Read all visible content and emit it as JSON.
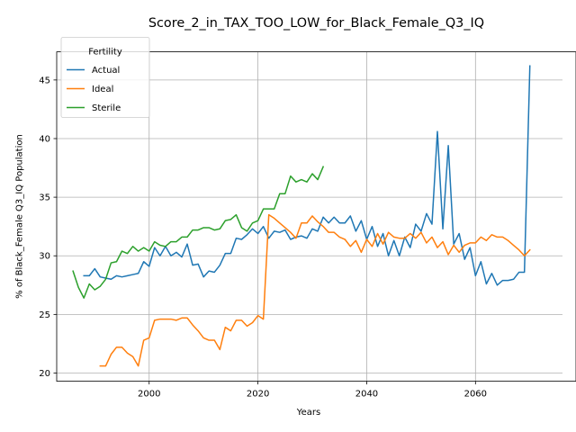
{
  "chart_data": {
    "type": "line",
    "title": "Score_2_in_TAX_TOO_LOW_for_Black_Female_Q3_IQ",
    "xlabel": "Years",
    "ylabel": "% of Black_Female Q3_IQ Population",
    "xlim": [
      1983,
      2076
    ],
    "ylim": [
      19.3,
      47.4
    ],
    "xticks": [
      2000,
      2020,
      2040,
      2060
    ],
    "yticks": [
      20,
      25,
      30,
      35,
      40,
      45
    ],
    "grid": true,
    "legend": {
      "title": "Fertility",
      "position": "top-left"
    },
    "series": [
      {
        "name": "Actual",
        "color": "#1f77b4",
        "points": [
          [
            1988,
            28.3
          ],
          [
            1989,
            28.3
          ],
          [
            1990,
            28.9
          ],
          [
            1991,
            28.2
          ],
          [
            1992,
            28.1
          ],
          [
            1993,
            28.0
          ],
          [
            1994,
            28.3
          ],
          [
            1995,
            28.2
          ],
          [
            1996,
            28.3
          ],
          [
            1997,
            28.4
          ],
          [
            1998,
            28.5
          ],
          [
            1999,
            29.5
          ],
          [
            2000,
            29.1
          ],
          [
            2001,
            30.7
          ],
          [
            2002,
            30.0
          ],
          [
            2003,
            30.8
          ],
          [
            2004,
            30.0
          ],
          [
            2005,
            30.3
          ],
          [
            2006,
            29.9
          ],
          [
            2007,
            31.0
          ],
          [
            2008,
            29.2
          ],
          [
            2009,
            29.3
          ],
          [
            2010,
            28.2
          ],
          [
            2011,
            28.7
          ],
          [
            2012,
            28.6
          ],
          [
            2013,
            29.2
          ],
          [
            2014,
            30.2
          ],
          [
            2015,
            30.2
          ],
          [
            2016,
            31.5
          ],
          [
            2017,
            31.4
          ],
          [
            2018,
            31.8
          ],
          [
            2019,
            32.3
          ],
          [
            2020,
            31.9
          ],
          [
            2021,
            32.5
          ],
          [
            2022,
            31.5
          ],
          [
            2023,
            32.1
          ],
          [
            2024,
            32.0
          ],
          [
            2025,
            32.2
          ],
          [
            2026,
            31.4
          ],
          [
            2027,
            31.6
          ],
          [
            2028,
            31.7
          ],
          [
            2029,
            31.5
          ],
          [
            2030,
            32.3
          ],
          [
            2031,
            32.1
          ],
          [
            2032,
            33.3
          ],
          [
            2033,
            32.8
          ],
          [
            2034,
            33.3
          ],
          [
            2035,
            32.8
          ],
          [
            2036,
            32.8
          ],
          [
            2037,
            33.4
          ],
          [
            2038,
            32.1
          ],
          [
            2039,
            33.0
          ],
          [
            2040,
            31.4
          ],
          [
            2041,
            32.5
          ],
          [
            2042,
            30.8
          ],
          [
            2043,
            31.9
          ],
          [
            2044,
            30.0
          ],
          [
            2045,
            31.3
          ],
          [
            2046,
            30.0
          ],
          [
            2047,
            31.6
          ],
          [
            2048,
            30.7
          ],
          [
            2049,
            32.7
          ],
          [
            2050,
            32.1
          ],
          [
            2051,
            33.6
          ],
          [
            2052,
            32.7
          ],
          [
            2053,
            40.6
          ],
          [
            2054,
            32.3
          ],
          [
            2055,
            39.4
          ],
          [
            2056,
            31.0
          ],
          [
            2057,
            31.9
          ],
          [
            2058,
            29.7
          ],
          [
            2059,
            30.7
          ],
          [
            2060,
            28.3
          ],
          [
            2061,
            29.5
          ],
          [
            2062,
            27.6
          ],
          [
            2063,
            28.5
          ],
          [
            2064,
            27.5
          ],
          [
            2065,
            27.9
          ],
          [
            2066,
            27.9
          ],
          [
            2067,
            28.0
          ],
          [
            2068,
            28.6
          ],
          [
            2069,
            28.6
          ],
          [
            2070,
            46.2
          ]
        ]
      },
      {
        "name": "Ideal",
        "color": "#ff7f0e",
        "points": [
          [
            1991,
            20.6
          ],
          [
            1992,
            20.6
          ],
          [
            1993,
            21.6
          ],
          [
            1994,
            22.2
          ],
          [
            1995,
            22.2
          ],
          [
            1996,
            21.7
          ],
          [
            1997,
            21.4
          ],
          [
            1998,
            20.6
          ],
          [
            1999,
            22.8
          ],
          [
            2000,
            23.0
          ],
          [
            2001,
            24.5
          ],
          [
            2002,
            24.6
          ],
          [
            2003,
            24.6
          ],
          [
            2004,
            24.6
          ],
          [
            2005,
            24.5
          ],
          [
            2006,
            24.7
          ],
          [
            2007,
            24.7
          ],
          [
            2008,
            24.1
          ],
          [
            2009,
            23.6
          ],
          [
            2010,
            23.0
          ],
          [
            2011,
            22.8
          ],
          [
            2012,
            22.8
          ],
          [
            2013,
            22.0
          ],
          [
            2014,
            23.9
          ],
          [
            2015,
            23.6
          ],
          [
            2016,
            24.5
          ],
          [
            2017,
            24.5
          ],
          [
            2018,
            24.0
          ],
          [
            2019,
            24.3
          ],
          [
            2020,
            24.9
          ],
          [
            2021,
            24.6
          ],
          [
            2022,
            33.5
          ],
          [
            2023,
            33.2
          ],
          [
            2024,
            32.8
          ],
          [
            2025,
            32.4
          ],
          [
            2026,
            32.0
          ],
          [
            2027,
            31.5
          ],
          [
            2028,
            32.8
          ],
          [
            2029,
            32.8
          ],
          [
            2030,
            33.4
          ],
          [
            2031,
            32.9
          ],
          [
            2032,
            32.5
          ],
          [
            2033,
            32.0
          ],
          [
            2034,
            32.0
          ],
          [
            2035,
            31.6
          ],
          [
            2036,
            31.4
          ],
          [
            2037,
            30.8
          ],
          [
            2038,
            31.3
          ],
          [
            2039,
            30.3
          ],
          [
            2040,
            31.4
          ],
          [
            2041,
            30.8
          ],
          [
            2042,
            31.9
          ],
          [
            2043,
            31.0
          ],
          [
            2044,
            32.0
          ],
          [
            2045,
            31.6
          ],
          [
            2046,
            31.5
          ],
          [
            2047,
            31.5
          ],
          [
            2048,
            31.9
          ],
          [
            2049,
            31.5
          ],
          [
            2050,
            32.0
          ],
          [
            2051,
            31.1
          ],
          [
            2052,
            31.6
          ],
          [
            2053,
            30.7
          ],
          [
            2054,
            31.2
          ],
          [
            2055,
            30.1
          ],
          [
            2056,
            30.9
          ],
          [
            2057,
            30.3
          ],
          [
            2058,
            30.9
          ],
          [
            2059,
            31.1
          ],
          [
            2060,
            31.1
          ],
          [
            2061,
            31.6
          ],
          [
            2062,
            31.3
          ],
          [
            2063,
            31.8
          ],
          [
            2064,
            31.6
          ],
          [
            2065,
            31.6
          ],
          [
            2066,
            31.3
          ],
          [
            2067,
            30.9
          ],
          [
            2068,
            30.5
          ],
          [
            2069,
            30.0
          ],
          [
            2070,
            30.5
          ]
        ]
      },
      {
        "name": "Sterile",
        "color": "#2ca02c",
        "points": [
          [
            1986,
            28.7
          ],
          [
            1987,
            27.3
          ],
          [
            1988,
            26.4
          ],
          [
            1989,
            27.6
          ],
          [
            1990,
            27.1
          ],
          [
            1991,
            27.4
          ],
          [
            1992,
            28.0
          ],
          [
            1993,
            29.4
          ],
          [
            1994,
            29.5
          ],
          [
            1995,
            30.4
          ],
          [
            1996,
            30.2
          ],
          [
            1997,
            30.8
          ],
          [
            1998,
            30.4
          ],
          [
            1999,
            30.7
          ],
          [
            2000,
            30.4
          ],
          [
            2001,
            31.2
          ],
          [
            2002,
            30.9
          ],
          [
            2003,
            30.8
          ],
          [
            2004,
            31.2
          ],
          [
            2005,
            31.2
          ],
          [
            2006,
            31.6
          ],
          [
            2007,
            31.6
          ],
          [
            2008,
            32.2
          ],
          [
            2009,
            32.2
          ],
          [
            2010,
            32.4
          ],
          [
            2011,
            32.4
          ],
          [
            2012,
            32.2
          ],
          [
            2013,
            32.3
          ],
          [
            2014,
            33.0
          ],
          [
            2015,
            33.1
          ],
          [
            2016,
            33.5
          ],
          [
            2017,
            32.4
          ],
          [
            2018,
            32.1
          ],
          [
            2019,
            32.8
          ],
          [
            2020,
            33.0
          ],
          [
            2021,
            34.0
          ],
          [
            2022,
            34.0
          ],
          [
            2023,
            34.0
          ],
          [
            2024,
            35.3
          ],
          [
            2025,
            35.3
          ],
          [
            2026,
            36.8
          ],
          [
            2027,
            36.3
          ],
          [
            2028,
            36.5
          ],
          [
            2029,
            36.3
          ],
          [
            2030,
            37.0
          ],
          [
            2031,
            36.5
          ],
          [
            2032,
            37.6
          ]
        ]
      }
    ]
  }
}
